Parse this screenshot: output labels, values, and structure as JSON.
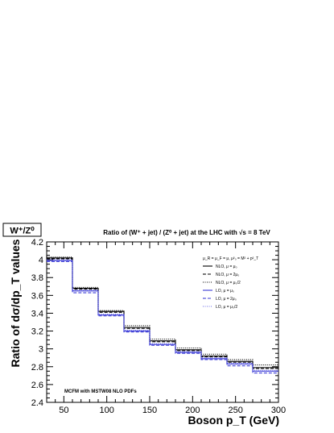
{
  "chart_data": {
    "type": "line",
    "title": "Ratio of (W⁺ + jet) / (Z⁰ + jet) at the LHC with √s = 8 TeV",
    "badge": "W⁺/Z⁰",
    "xlabel": "Boson p_T (GeV)",
    "ylabel": "Ratio of dσ/dp_T values",
    "xlim": [
      30,
      300
    ],
    "ylim": [
      2.4,
      4.2
    ],
    "x_ticks": [
      50,
      100,
      150,
      200,
      250,
      300
    ],
    "x_tick_labels": [
      "50",
      "100",
      "150",
      "200",
      "250",
      "300"
    ],
    "y_ticks": [
      2.4,
      2.6,
      2.8,
      3.0,
      3.2,
      3.4,
      3.6,
      3.8,
      4.0,
      4.2
    ],
    "y_tick_labels": [
      "2.4",
      "2.6",
      "2.8",
      "3",
      "3.2",
      "3.4",
      "3.6",
      "3.8",
      "4",
      "4.2"
    ],
    "bin_edges": [
      30,
      60,
      90,
      120,
      150,
      180,
      210,
      240,
      270,
      300
    ],
    "annotation": "MCFM with MSTW08 NLO PDFs",
    "legend_header": "μ_R = μ_F = μ, μ²₀ = M² + p²_T",
    "legend_position": "top-right",
    "series": [
      {
        "name": "NLO, μ = μ₀",
        "color": "#000000",
        "dash": "solid",
        "values": [
          4.02,
          3.68,
          3.42,
          3.24,
          3.09,
          2.99,
          2.92,
          2.86,
          2.79
        ]
      },
      {
        "name": "NLO, μ = 2μ₀",
        "color": "#000000",
        "dash": "dashed",
        "values": [
          4.01,
          3.67,
          3.41,
          3.23,
          3.08,
          2.98,
          2.91,
          2.85,
          2.78
        ]
      },
      {
        "name": "NLO, μ = μ₀/2",
        "color": "#000000",
        "dash": "dotted",
        "values": [
          4.03,
          3.69,
          3.43,
          3.26,
          3.11,
          3.01,
          2.94,
          2.88,
          2.82
        ]
      },
      {
        "name": "LO, μ = μ₀",
        "color": "#3b3bd6",
        "dash": "solid",
        "values": [
          3.99,
          3.65,
          3.38,
          3.2,
          3.05,
          2.96,
          2.89,
          2.83,
          2.75
        ]
      },
      {
        "name": "LO, μ = 2μ₀",
        "color": "#3b3bd6",
        "dash": "dashed",
        "values": [
          3.98,
          3.63,
          3.37,
          3.19,
          3.04,
          2.95,
          2.88,
          2.81,
          2.73
        ]
      },
      {
        "name": "LO, μ = μ₀/2",
        "color": "#6a6ae8",
        "dash": "dotted",
        "values": [
          4.0,
          3.66,
          3.39,
          3.21,
          3.06,
          2.97,
          2.9,
          2.84,
          2.76
        ]
      }
    ]
  }
}
